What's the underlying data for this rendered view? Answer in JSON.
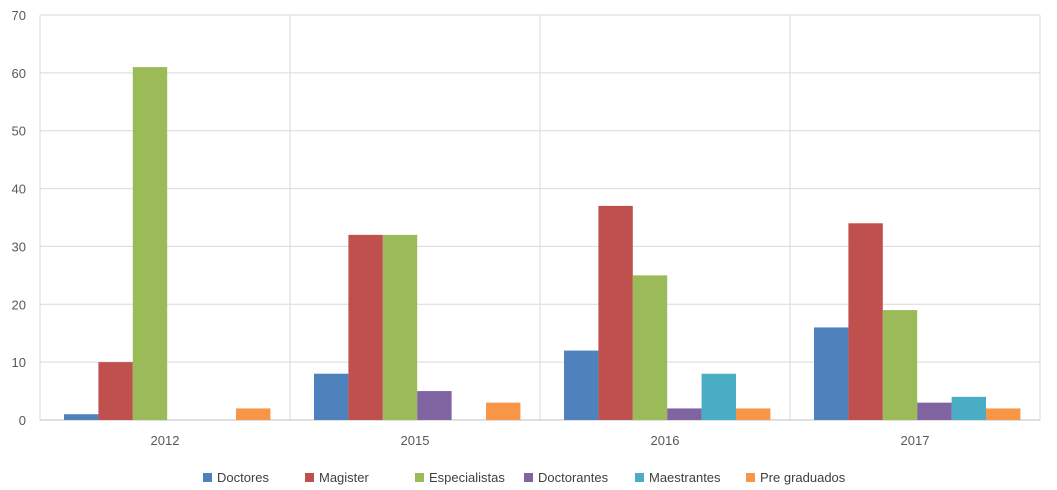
{
  "chart_data": {
    "type": "bar",
    "title": "",
    "xlabel": "",
    "ylabel": "",
    "categories": [
      "2012",
      "2015",
      "2016",
      "2017"
    ],
    "ylim": [
      0,
      70
    ],
    "yticks": [
      "0",
      "10",
      "20",
      "30",
      "40",
      "50",
      "60",
      "70"
    ],
    "grid": true,
    "legend_position": "bottom",
    "series": [
      {
        "name": "Doctores",
        "color": "#4F81BD",
        "values": [
          1,
          8,
          12,
          16
        ]
      },
      {
        "name": "Magister",
        "color": "#C0504D",
        "values": [
          10,
          32,
          37,
          34
        ]
      },
      {
        "name": "Especialistas",
        "color": "#9BBB59",
        "values": [
          61,
          32,
          25,
          19
        ]
      },
      {
        "name": "Doctorantes",
        "color": "#8064A2",
        "values": [
          0,
          5,
          2,
          3
        ]
      },
      {
        "name": "Maestrantes",
        "color": "#4BACC6",
        "values": [
          0,
          0,
          8,
          4
        ]
      },
      {
        "name": "Pre graduados",
        "color": "#F79646",
        "values": [
          2,
          3,
          2,
          2
        ]
      }
    ]
  }
}
